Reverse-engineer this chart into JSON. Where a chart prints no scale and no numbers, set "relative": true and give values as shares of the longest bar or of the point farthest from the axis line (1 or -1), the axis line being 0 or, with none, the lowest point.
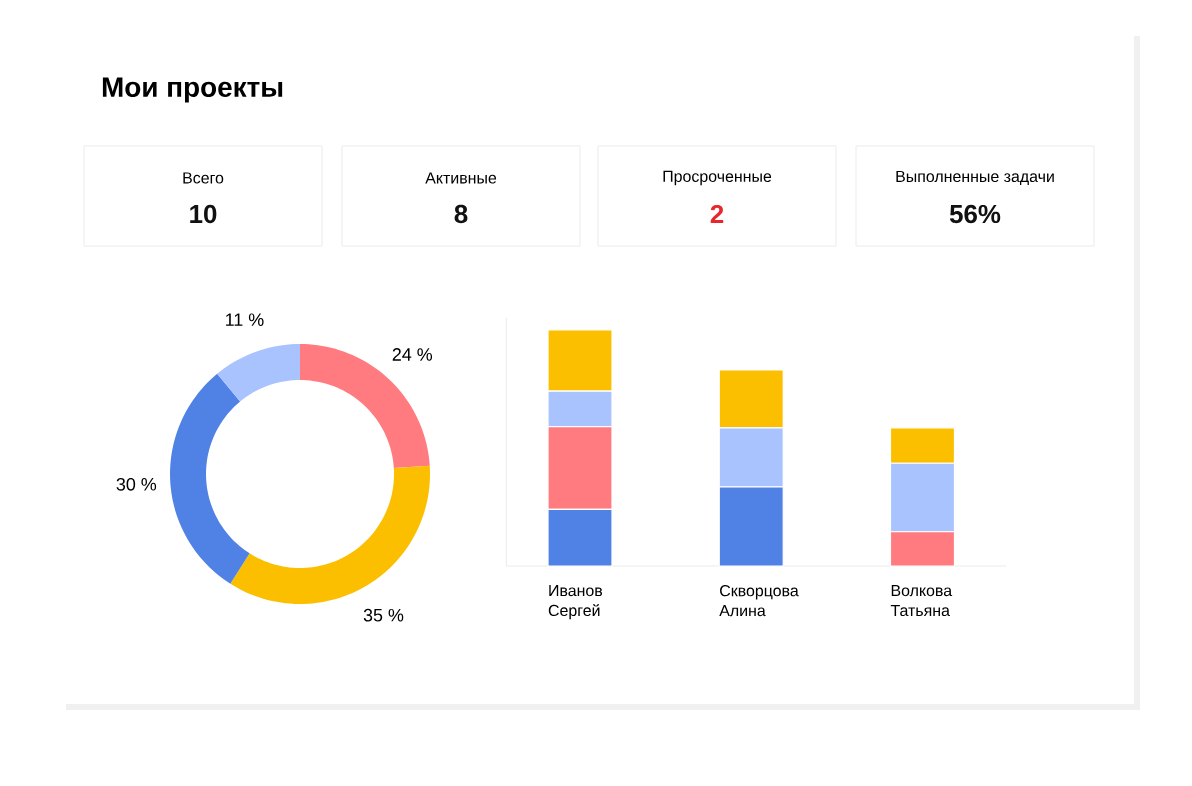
{
  "chart_data": [
    {
      "type": "other",
      "title": "Мои проекты",
      "categories": [
        "Всего",
        "Активные",
        "Просроченные",
        "Выполненные задачи"
      ],
      "value_labels": [
        "10",
        "8",
        "2",
        "56%"
      ]
    },
    {
      "type": "donut",
      "categories": [
        null,
        null,
        null,
        null
      ],
      "values": [
        24,
        35,
        30,
        11
      ],
      "value_labels": [
        "24 %",
        "35 %",
        "30 %",
        "11 %"
      ],
      "colors": [
        "#ff7b7f",
        "#fbbf00",
        "#5082e6",
        "#a9c3ff"
      ]
    },
    {
      "type": "bar",
      "stacked": true,
      "relative": true,
      "categories": [
        "Иванов Сергей",
        "Скворцова Алина",
        "Волкова Татьяна"
      ],
      "series": [
        {
          "color": "#5082e6",
          "values": [
            0.24,
            0.335,
            null
          ]
        },
        {
          "color": "#ff7b7f",
          "values": [
            0.35,
            null,
            0.145
          ]
        },
        {
          "color": "#a9c3ff",
          "values": [
            0.15,
            0.25,
            0.29
          ]
        },
        {
          "color": "#fbbf00",
          "values": [
            0.26,
            0.245,
            0.15
          ]
        }
      ]
    }
  ]
}
